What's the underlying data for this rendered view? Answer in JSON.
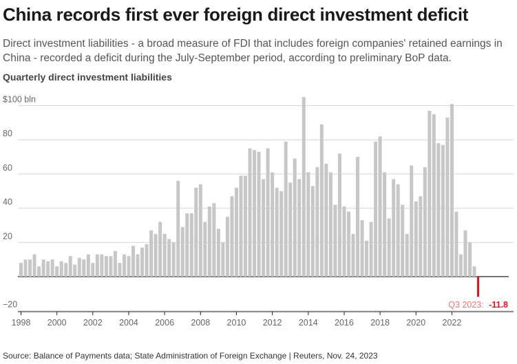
{
  "header": {
    "title": "China records first ever foreign direct investment deficit",
    "subtitle": "Direct investment liabilities - a broad measure of FDI that includes foreign companies' retained earnings in China - recorded a deficit during the July-September period, according to preliminary BoP data."
  },
  "footer": {
    "source": "Source: Balance of Payments data; State Administration of Foreign Exchange | Reuters, Nov. 24, 2023"
  },
  "colors": {
    "bar": "#c7c7c7",
    "highlight": "#e3121b",
    "annotation_label": "#e87878",
    "grid": "#d5d5d5",
    "zero_line": "#222222"
  },
  "chart_data": {
    "type": "bar",
    "title": "Quarterly direct investment liabilities",
    "unit_label": "$100 bln",
    "ylim": [
      -20,
      105
    ],
    "yticks": [
      -20,
      20,
      40,
      60,
      80,
      100
    ],
    "ytick_labels": [
      "−20",
      "20",
      "40",
      "60",
      "80",
      "$100 bln"
    ],
    "xticks": [
      "1998",
      "2000",
      "2002",
      "2004",
      "2006",
      "2008",
      "2010",
      "2012",
      "2014",
      "2016",
      "2018",
      "2020",
      "2022"
    ],
    "grid": true,
    "start_quarter": "1998 Q1",
    "values": [
      8,
      10,
      10,
      13,
      6,
      10,
      9,
      10,
      6,
      9,
      8,
      12,
      7,
      11,
      10,
      13,
      8,
      13,
      13,
      12,
      12,
      15,
      8,
      13,
      12,
      18,
      13,
      17,
      19,
      27,
      25,
      32,
      25,
      22,
      20,
      56,
      29,
      37,
      37,
      52,
      54,
      32,
      41,
      43,
      28,
      20,
      35,
      47,
      52,
      59,
      59,
      75,
      74,
      73,
      57,
      75,
      61,
      52,
      50,
      79,
      55,
      69,
      57,
      105,
      61,
      53,
      64,
      89,
      66,
      61,
      42,
      72,
      41,
      38,
      25,
      70,
      33,
      21,
      32,
      79,
      82,
      61,
      34,
      57,
      54,
      42,
      25,
      65,
      44,
      47,
      64,
      97,
      95,
      78,
      77,
      93,
      101,
      38,
      13,
      27,
      20,
      6,
      -11.8
    ],
    "annotation": {
      "label": "Q3 2023:",
      "value": "-11.8",
      "quarter": "2023 Q3"
    }
  }
}
